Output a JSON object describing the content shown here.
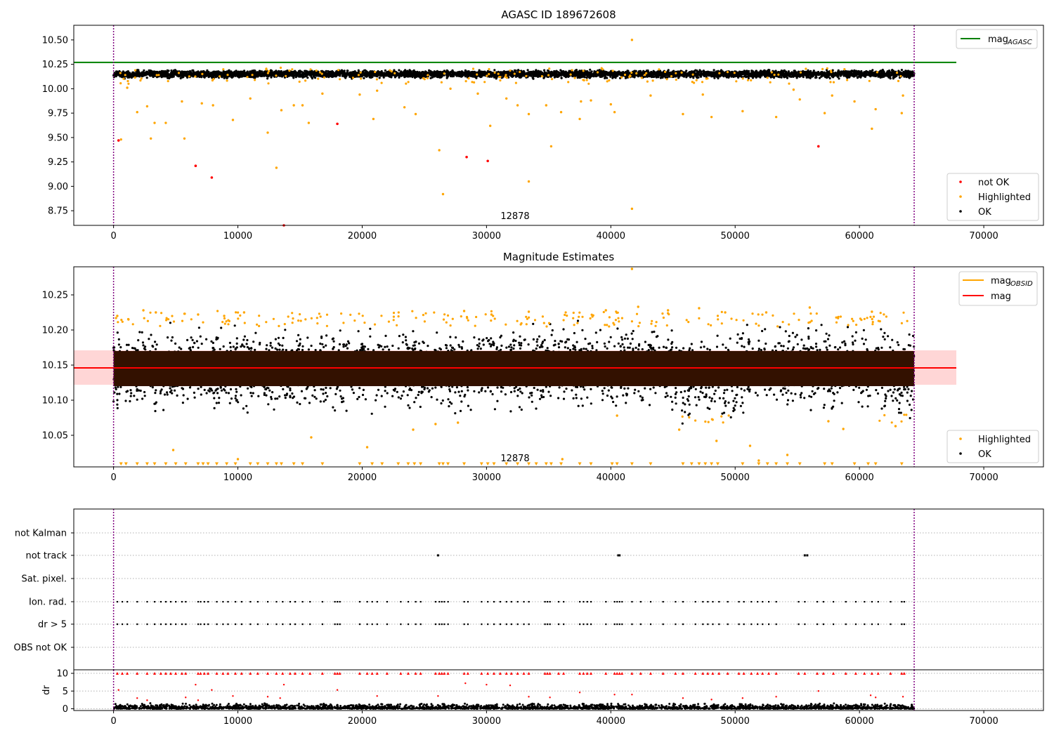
{
  "colors": {
    "ok": "#000000",
    "highlighted": "#ffa500",
    "not_ok": "#ff0000",
    "mag_agasc_line": "#008000",
    "mag_line": "#ff0000",
    "mag_obsid_line": "#ffa500",
    "band": "#ffd6d6",
    "dense_band": "#331100",
    "obs_boundary": "#800080",
    "grid": "#b0b0b0"
  },
  "chart_data": [
    {
      "type": "scatter",
      "title": "AGASC ID 189672608",
      "annotation": "12878",
      "xlim": [
        -3200,
        74800
      ],
      "ylim": [
        8.6,
        10.65
      ],
      "xticks": [
        "0",
        "10000",
        "20000",
        "30000",
        "40000",
        "50000",
        "60000",
        "70000"
      ],
      "xtick_values": [
        0,
        10000,
        20000,
        30000,
        40000,
        50000,
        60000,
        70000
      ],
      "yticks": [
        "8.75",
        "9.00",
        "9.25",
        "9.50",
        "9.75",
        "10.00",
        "10.25",
        "10.50"
      ],
      "ytick_values": [
        8.75,
        9.0,
        9.25,
        9.5,
        9.75,
        10.0,
        10.25,
        10.5
      ],
      "mag_agasc": 10.27,
      "obs_boundaries": [
        0,
        64400
      ],
      "legend_lines": [
        {
          "label": "mag",
          "sub": "AGASC"
        }
      ],
      "legend_points": [
        "not OK",
        "Highlighted",
        "OK"
      ],
      "ok_band": {
        "x": [
          0,
          64400
        ],
        "y": [
          10.1,
          10.2
        ]
      },
      "not_ok_points": [
        [
          400,
          9.47
        ],
        [
          6600,
          9.21
        ],
        [
          7900,
          9.09
        ],
        [
          18000,
          9.64
        ],
        [
          28400,
          9.3
        ],
        [
          30100,
          9.26
        ],
        [
          56700,
          9.41
        ],
        [
          13700,
          8.6
        ]
      ],
      "highlighted_points": [
        [
          600,
          9.48
        ],
        [
          1100,
          10.01
        ],
        [
          1900,
          9.76
        ],
        [
          2700,
          9.82
        ],
        [
          3000,
          9.49
        ],
        [
          3300,
          9.65
        ],
        [
          4200,
          9.65
        ],
        [
          5700,
          9.49
        ],
        [
          5500,
          9.87
        ],
        [
          7100,
          9.85
        ],
        [
          8000,
          9.83
        ],
        [
          9600,
          9.68
        ],
        [
          11000,
          9.9
        ],
        [
          12400,
          9.55
        ],
        [
          13100,
          9.19
        ],
        [
          13500,
          9.78
        ],
        [
          14500,
          9.83
        ],
        [
          15200,
          9.83
        ],
        [
          15700,
          9.65
        ],
        [
          16800,
          9.95
        ],
        [
          19800,
          9.94
        ],
        [
          20900,
          9.69
        ],
        [
          21200,
          9.98
        ],
        [
          23400,
          9.81
        ],
        [
          24300,
          9.74
        ],
        [
          26200,
          9.37
        ],
        [
          26500,
          8.92
        ],
        [
          27100,
          10.0
        ],
        [
          29300,
          9.95
        ],
        [
          30300,
          9.62
        ],
        [
          31600,
          9.9
        ],
        [
          32500,
          9.83
        ],
        [
          33400,
          9.05
        ],
        [
          33400,
          9.74
        ],
        [
          34800,
          9.83
        ],
        [
          35200,
          9.41
        ],
        [
          36000,
          9.76
        ],
        [
          37500,
          9.69
        ],
        [
          37600,
          9.87
        ],
        [
          38400,
          9.88
        ],
        [
          40000,
          9.84
        ],
        [
          40300,
          9.76
        ],
        [
          41700,
          10.5
        ],
        [
          41700,
          8.77
        ],
        [
          43200,
          9.93
        ],
        [
          45800,
          9.74
        ],
        [
          47400,
          9.94
        ],
        [
          48100,
          9.71
        ],
        [
          50600,
          9.77
        ],
        [
          53300,
          9.71
        ],
        [
          54700,
          9.99
        ],
        [
          55200,
          9.89
        ],
        [
          57200,
          9.75
        ],
        [
          57800,
          9.93
        ],
        [
          59600,
          9.87
        ],
        [
          61000,
          9.59
        ],
        [
          61300,
          9.79
        ],
        [
          63400,
          9.75
        ],
        [
          63500,
          9.93
        ]
      ]
    },
    {
      "type": "scatter",
      "title": "Magnitude Estimates",
      "annotation": "12878",
      "xlim": [
        -3200,
        74800
      ],
      "ylim": [
        10.005,
        10.29
      ],
      "xticks": [
        "0",
        "10000",
        "20000",
        "30000",
        "40000",
        "50000",
        "60000",
        "70000"
      ],
      "xtick_values": [
        0,
        10000,
        20000,
        30000,
        40000,
        50000,
        60000,
        70000
      ],
      "yticks": [
        "10.05",
        "10.10",
        "10.15",
        "10.20",
        "10.25"
      ],
      "ytick_values": [
        10.05,
        10.1,
        10.15,
        10.2,
        10.25
      ],
      "mag": 10.146,
      "mag_band": [
        10.122,
        10.171
      ],
      "obs_boundaries": [
        0,
        64400
      ],
      "legend_lines": [
        {
          "label": "mag",
          "sub": "OBSID"
        },
        {
          "label": "mag",
          "sub": ""
        }
      ],
      "legend_points": [
        "Highlighted",
        "OK"
      ],
      "dense_band": {
        "x": [
          0,
          64400
        ],
        "y": [
          10.12,
          10.17
        ]
      },
      "ok_spread": [
        10.078,
        10.212
      ],
      "highlighted_points": [
        [
          300,
          10.22
        ],
        [
          1200,
          10.215
        ],
        [
          2400,
          10.228
        ],
        [
          3400,
          10.225
        ],
        [
          6800,
          10.222
        ],
        [
          8900,
          10.22
        ],
        [
          10500,
          10.225
        ],
        [
          15900,
          10.047
        ],
        [
          20400,
          10.033
        ],
        [
          24100,
          10.058
        ],
        [
          25900,
          10.066
        ],
        [
          27700,
          10.068
        ],
        [
          28200,
          10.227
        ],
        [
          30400,
          10.222
        ],
        [
          33400,
          10.226
        ],
        [
          36100,
          10.016
        ],
        [
          39600,
          10.228
        ],
        [
          40500,
          10.078
        ],
        [
          41700,
          10.287
        ],
        [
          42200,
          10.233
        ],
        [
          44600,
          10.228
        ],
        [
          45500,
          10.058
        ],
        [
          47100,
          10.231
        ],
        [
          48500,
          10.042
        ],
        [
          49200,
          10.225
        ],
        [
          51200,
          10.035
        ],
        [
          51900,
          10.014
        ],
        [
          52500,
          10.225
        ],
        [
          54200,
          10.022
        ],
        [
          56000,
          10.232
        ],
        [
          57500,
          10.07
        ],
        [
          58700,
          10.059
        ],
        [
          61000,
          10.226
        ],
        [
          62900,
          10.063
        ],
        [
          4800,
          10.029
        ],
        [
          10000,
          10.016
        ]
      ],
      "floor_markers": [
        600,
        1000,
        1900,
        2700,
        3300,
        4200,
        5000,
        5800,
        6800,
        7200,
        7600,
        8300,
        9100,
        9800,
        11000,
        11600,
        12400,
        13100,
        13500,
        14500,
        15200,
        16800,
        19800,
        20800,
        21600,
        22900,
        23700,
        24200,
        24700,
        26200,
        26500,
        26900,
        28200,
        29600,
        30100,
        30600,
        31600,
        32500,
        33400,
        34000,
        34800,
        35200,
        36000,
        37500,
        38400,
        40100,
        40500,
        41700,
        43200,
        45800,
        46500,
        47100,
        47600,
        48100,
        48600,
        50600,
        51900,
        52600,
        53300,
        54200,
        55200,
        57200,
        57800,
        59600,
        60700,
        61300,
        63400
      ]
    },
    {
      "type": "scatter",
      "title": "",
      "xlim": [
        -3200,
        74800
      ],
      "xticks": [
        "0",
        "10000",
        "20000",
        "30000",
        "40000",
        "50000",
        "60000",
        "70000"
      ],
      "xtick_values": [
        0,
        10000,
        20000,
        30000,
        40000,
        50000,
        60000,
        70000
      ],
      "obs_boundaries": [
        0,
        64400
      ],
      "flag_rows": [
        "not Kalman",
        "not track",
        "Sat. pixel.",
        "Ion. rad.",
        "dr > 5",
        "OBS not OK"
      ],
      "not_track_x": [
        26100,
        40600,
        40700,
        55600,
        55800
      ],
      "flag_x": [
        300,
        700,
        1100,
        1900,
        2700,
        3300,
        3800,
        4200,
        4600,
        5000,
        5500,
        5800,
        6800,
        7000,
        7300,
        7600,
        8300,
        8800,
        9200,
        9800,
        10300,
        11000,
        11600,
        12400,
        13100,
        13600,
        14200,
        14600,
        15200,
        15800,
        16800,
        17800,
        18000,
        18200,
        19800,
        20400,
        20800,
        21200,
        22000,
        23100,
        23700,
        24300,
        24700,
        25900,
        26200,
        26400,
        26600,
        26900,
        28200,
        28500,
        29600,
        30100,
        30600,
        31100,
        31600,
        32000,
        32500,
        33000,
        33400,
        34700,
        34900,
        35100,
        35800,
        36200,
        37500,
        37800,
        38100,
        38400,
        39600,
        40300,
        40500,
        40700,
        40900,
        41700,
        42400,
        43200,
        44200,
        45200,
        45800,
        46800,
        47400,
        47800,
        48200,
        48700,
        49400,
        50300,
        50700,
        51300,
        51800,
        52200,
        52700,
        53300,
        55100,
        55600,
        56600,
        57100,
        57900,
        58900,
        59700,
        60400,
        61000,
        61500,
        62500,
        63400,
        63600
      ]
    },
    {
      "type": "scatter",
      "title": "",
      "ylabel": "dr",
      "xlim": [
        -3200,
        74800
      ],
      "ylim": [
        -0.5,
        11
      ],
      "xticks": [
        "0",
        "10000",
        "20000",
        "30000",
        "40000",
        "50000",
        "60000",
        "70000"
      ],
      "xtick_values": [
        0,
        10000,
        20000,
        30000,
        40000,
        50000,
        60000,
        70000
      ],
      "yticks": [
        "0",
        "5",
        "10"
      ],
      "ytick_values": [
        0,
        5,
        10
      ],
      "obs_boundaries": [
        0,
        64400
      ],
      "ok_band": {
        "x": [
          0,
          64400
        ],
        "y": [
          0,
          1.2
        ]
      },
      "capped_value": 10,
      "red_points": [
        [
          400,
          5.3
        ],
        [
          1900,
          3.0
        ],
        [
          2700,
          2.4
        ],
        [
          5800,
          3.2
        ],
        [
          6600,
          6.8
        ],
        [
          6800,
          2.4
        ],
        [
          7900,
          5.3
        ],
        [
          9600,
          3.6
        ],
        [
          12400,
          3.4
        ],
        [
          13400,
          3.0
        ],
        [
          13700,
          6.8
        ],
        [
          18000,
          5.3
        ],
        [
          21200,
          3.6
        ],
        [
          26100,
          3.6
        ],
        [
          28300,
          7.2
        ],
        [
          30000,
          6.8
        ],
        [
          31900,
          6.6
        ],
        [
          33400,
          3.4
        ],
        [
          35100,
          3.2
        ],
        [
          37500,
          4.6
        ],
        [
          40300,
          4.0
        ],
        [
          41700,
          4.0
        ],
        [
          45800,
          3.0
        ],
        [
          48100,
          2.6
        ],
        [
          50600,
          3.0
        ],
        [
          53300,
          3.4
        ],
        [
          56700,
          5.0
        ],
        [
          60900,
          3.8
        ],
        [
          61300,
          3.2
        ],
        [
          63500,
          3.4
        ]
      ],
      "red_capped_x": [
        300,
        700,
        1100,
        1900,
        2700,
        3300,
        3800,
        4200,
        4600,
        5000,
        5500,
        5800,
        6800,
        7000,
        7300,
        7600,
        8300,
        8800,
        9200,
        9800,
        10300,
        11000,
        11600,
        12400,
        13100,
        13600,
        14200,
        14600,
        15200,
        15800,
        16800,
        17800,
        18000,
        18200,
        19800,
        20400,
        20800,
        21200,
        22000,
        23100,
        23700,
        24300,
        24700,
        25900,
        26200,
        26400,
        26600,
        26900,
        28200,
        28500,
        29600,
        30100,
        30600,
        31100,
        31600,
        32000,
        32500,
        33000,
        33400,
        34700,
        34900,
        35100,
        35800,
        36200,
        37500,
        37800,
        38100,
        38400,
        39600,
        40300,
        40500,
        40700,
        40900,
        41700,
        42400,
        43200,
        44200,
        45200,
        45800,
        46800,
        47400,
        47800,
        48200,
        48700,
        49400,
        50300,
        50700,
        51300,
        51800,
        52200,
        52700,
        53300,
        55100,
        55600,
        56600,
        57100,
        57900,
        58900,
        59700,
        60400,
        61000,
        61500,
        62500,
        63400,
        63600
      ]
    }
  ]
}
